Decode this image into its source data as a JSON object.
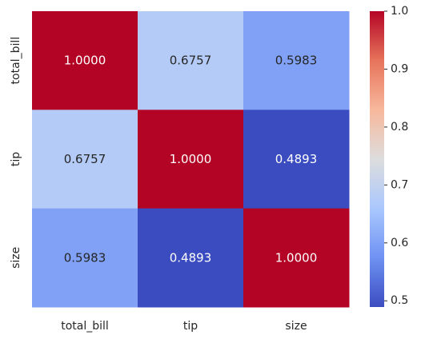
{
  "chart_data": {
    "type": "heatmap",
    "title": "",
    "xlabel": "",
    "ylabel": "",
    "x_categories": [
      "total_bill",
      "tip",
      "size"
    ],
    "y_categories": [
      "total_bill",
      "tip",
      "size"
    ],
    "values": [
      [
        1.0,
        0.6757,
        0.5983
      ],
      [
        0.6757,
        1.0,
        0.4893
      ],
      [
        0.5983,
        0.4893,
        1.0
      ]
    ],
    "cell_labels": [
      [
        "1.0000",
        "0.6757",
        "0.5983"
      ],
      [
        "0.6757",
        "1.0000",
        "0.4893"
      ],
      [
        "0.5983",
        "0.4893",
        "1.0000"
      ]
    ],
    "colormap": "coolwarm",
    "colormap_stops": [
      "#3b4cc0",
      "#6f92f3",
      "#aac7fd",
      "#dddddd",
      "#f7b89c",
      "#e7745b",
      "#b40426"
    ],
    "vmin": 0.4893,
    "vmax": 1.0,
    "colorbar_ticks": [
      0.5,
      0.6,
      0.7,
      0.8,
      0.9,
      1.0
    ],
    "colorbar_tick_labels": [
      "0.5",
      "0.6",
      "0.7",
      "0.8",
      "0.9",
      "1.0"
    ],
    "colorbar_position": "right",
    "grid": false,
    "dark_text_color": "#262626",
    "light_text_color": "#ffffff"
  }
}
